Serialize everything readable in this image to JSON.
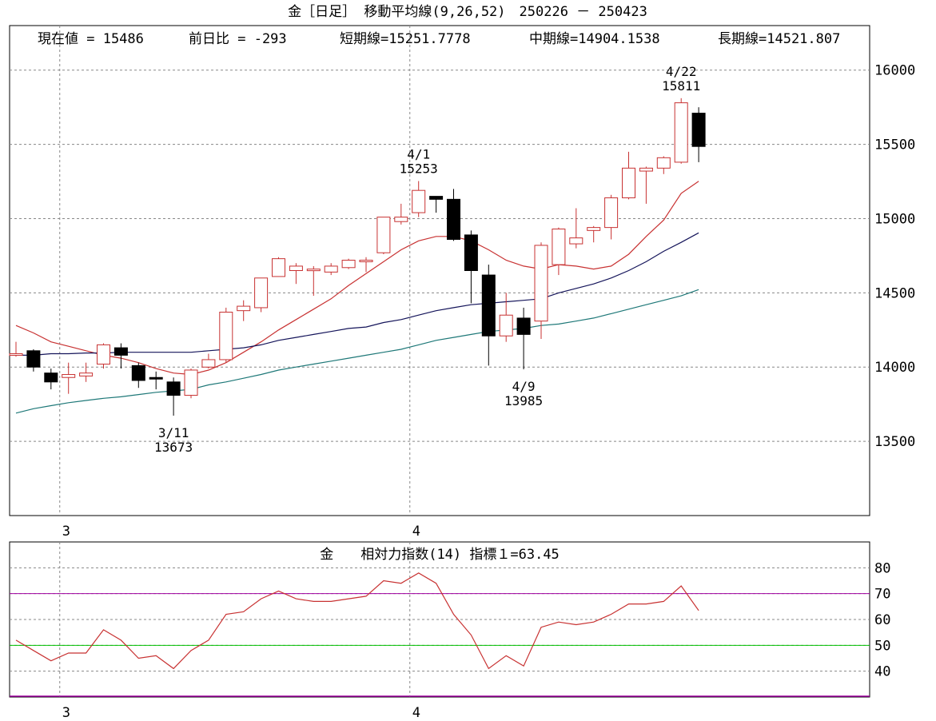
{
  "header": {
    "title": "金［日足］ 移動平均線(9,26,52)　250226 － 250423",
    "current_label": "現在値 = 15486",
    "change_label": "前日比 = -293",
    "short_label": "短期線=15251.7778",
    "mid_label": "中期線=14904.1538",
    "long_label": "長期線=14521.807"
  },
  "colors": {
    "up_candle": "#c83232",
    "down_candle": "#000000",
    "ma_short": "#c83232",
    "ma_mid": "#14145a",
    "ma_long": "#1e7878",
    "rsi_line": "#c83232",
    "rsi_upper_ref": "#a000a0",
    "rsi_mid_ref": "#00c000",
    "grid": "#888888"
  },
  "chart_data": [
    {
      "type": "candlestick",
      "name_label": "移動平均線(9,26,52)",
      "ylim": [
        13000,
        16300
      ],
      "yticks": [
        13500,
        14000,
        14500,
        15000,
        15500,
        16000
      ],
      "month_labels": [
        {
          "index": 2.5,
          "label": "3"
        },
        {
          "index": 22.5,
          "label": "4"
        }
      ],
      "candles": [
        {
          "o": 14090,
          "h": 14170,
          "l": 14070,
          "c": 14090
        },
        {
          "o": 14110,
          "h": 14120,
          "l": 13970,
          "c": 14000
        },
        {
          "o": 13960,
          "h": 13990,
          "l": 13850,
          "c": 13900
        },
        {
          "o": 13930,
          "h": 14030,
          "l": 13820,
          "c": 13950
        },
        {
          "o": 13940,
          "h": 14030,
          "l": 13900,
          "c": 13960
        },
        {
          "o": 14020,
          "h": 14160,
          "l": 13990,
          "c": 14150
        },
        {
          "o": 14130,
          "h": 14160,
          "l": 13990,
          "c": 14080
        },
        {
          "o": 14010,
          "h": 14030,
          "l": 13860,
          "c": 13910
        },
        {
          "o": 13930,
          "h": 13970,
          "l": 13850,
          "c": 13920
        },
        {
          "o": 13900,
          "h": 13930,
          "l": 13673,
          "c": 13810
        },
        {
          "o": 13810,
          "h": 13990,
          "l": 13790,
          "c": 13980
        },
        {
          "o": 14000,
          "h": 14090,
          "l": 13990,
          "c": 14050
        },
        {
          "o": 14050,
          "h": 14400,
          "l": 14030,
          "c": 14370
        },
        {
          "o": 14380,
          "h": 14450,
          "l": 14310,
          "c": 14410
        },
        {
          "o": 14400,
          "h": 14600,
          "l": 14370,
          "c": 14600
        },
        {
          "o": 14610,
          "h": 14740,
          "l": 14610,
          "c": 14730
        },
        {
          "o": 14650,
          "h": 14700,
          "l": 14560,
          "c": 14680
        },
        {
          "o": 14660,
          "h": 14680,
          "l": 14480,
          "c": 14660
        },
        {
          "o": 14640,
          "h": 14700,
          "l": 14620,
          "c": 14680
        },
        {
          "o": 14670,
          "h": 14730,
          "l": 14660,
          "c": 14720
        },
        {
          "o": 14710,
          "h": 14740,
          "l": 14640,
          "c": 14720
        },
        {
          "o": 14770,
          "h": 15010,
          "l": 14760,
          "c": 15010
        },
        {
          "o": 14980,
          "h": 15100,
          "l": 14960,
          "c": 15010
        },
        {
          "o": 15040,
          "h": 15253,
          "l": 15010,
          "c": 15190
        },
        {
          "o": 15150,
          "h": 15150,
          "l": 15040,
          "c": 15130
        },
        {
          "o": 15130,
          "h": 15200,
          "l": 14850,
          "c": 14860
        },
        {
          "o": 14890,
          "h": 14920,
          "l": 14430,
          "c": 14650
        },
        {
          "o": 14620,
          "h": 14690,
          "l": 14010,
          "c": 14210
        },
        {
          "o": 14210,
          "h": 14500,
          "l": 14170,
          "c": 14350
        },
        {
          "o": 14330,
          "h": 14400,
          "l": 13985,
          "c": 14220
        },
        {
          "o": 14310,
          "h": 14840,
          "l": 14190,
          "c": 14820
        },
        {
          "o": 14690,
          "h": 14940,
          "l": 14620,
          "c": 14930
        },
        {
          "o": 14830,
          "h": 15070,
          "l": 14800,
          "c": 14870
        },
        {
          "o": 14920,
          "h": 14950,
          "l": 14840,
          "c": 14940
        },
        {
          "o": 14940,
          "h": 15160,
          "l": 14860,
          "c": 15140
        },
        {
          "o": 15140,
          "h": 15450,
          "l": 15130,
          "c": 15340
        },
        {
          "o": 15320,
          "h": 15350,
          "l": 15100,
          "c": 15340
        },
        {
          "o": 15340,
          "h": 15420,
          "l": 15300,
          "c": 15410
        },
        {
          "o": 15380,
          "h": 15811,
          "l": 15370,
          "c": 15780
        },
        {
          "o": 15710,
          "h": 15750,
          "l": 15380,
          "c": 15486
        }
      ],
      "ma_short": [
        14280,
        14230,
        14170,
        14140,
        14110,
        14080,
        14060,
        14030,
        13990,
        13960,
        13950,
        13980,
        14030,
        14100,
        14170,
        14250,
        14320,
        14390,
        14460,
        14550,
        14630,
        14710,
        14790,
        14850,
        14880,
        14880,
        14850,
        14790,
        14720,
        14680,
        14660,
        14690,
        14680,
        14660,
        14680,
        14760,
        14880,
        14990,
        15170,
        15251.7778
      ],
      "ma_mid": [
        14080,
        14080,
        14090,
        14090,
        14095,
        14095,
        14100,
        14100,
        14100,
        14100,
        14100,
        14110,
        14120,
        14130,
        14150,
        14180,
        14200,
        14220,
        14240,
        14260,
        14270,
        14300,
        14320,
        14350,
        14380,
        14400,
        14420,
        14430,
        14440,
        14450,
        14460,
        14500,
        14530,
        14560,
        14600,
        14650,
        14710,
        14780,
        14840,
        14904.1538
      ],
      "ma_long": [
        13690,
        13720,
        13740,
        13760,
        13775,
        13790,
        13800,
        13815,
        13830,
        13840,
        13850,
        13880,
        13900,
        13925,
        13950,
        13980,
        14000,
        14020,
        14040,
        14060,
        14080,
        14100,
        14120,
        14150,
        14180,
        14200,
        14220,
        14240,
        14250,
        14260,
        14280,
        14290,
        14310,
        14330,
        14360,
        14390,
        14420,
        14450,
        14480,
        14521.807
      ],
      "annotations": [
        {
          "index": 9,
          "date_text": "3/11",
          "value_text": "13673",
          "position": "below"
        },
        {
          "index": 23,
          "date_text": "4/1",
          "value_text": "15253",
          "position": "above"
        },
        {
          "index": 29,
          "date_text": "4/9",
          "value_text": "13985",
          "position": "below"
        },
        {
          "index": 38,
          "date_text": "4/22",
          "value_text": "15811",
          "position": "above"
        }
      ]
    },
    {
      "type": "line",
      "title": "金　　相対力指数(14) 指標１=63.45",
      "ylim": [
        30,
        90
      ],
      "yticks": [
        40,
        50,
        60,
        70,
        80
      ],
      "reference_lines": [
        70,
        50
      ],
      "month_labels": [
        {
          "index": 2.5,
          "label": "3"
        },
        {
          "index": 22.5,
          "label": "4"
        }
      ],
      "values": [
        52,
        48,
        44,
        47,
        47,
        56,
        52,
        45,
        46,
        41,
        48,
        52,
        62,
        63,
        68,
        71,
        68,
        67,
        67,
        68,
        69,
        75,
        74,
        78,
        74,
        62,
        54,
        41,
        46,
        42,
        57,
        59,
        58,
        59,
        62,
        66,
        66,
        67,
        73,
        63.45
      ]
    }
  ]
}
